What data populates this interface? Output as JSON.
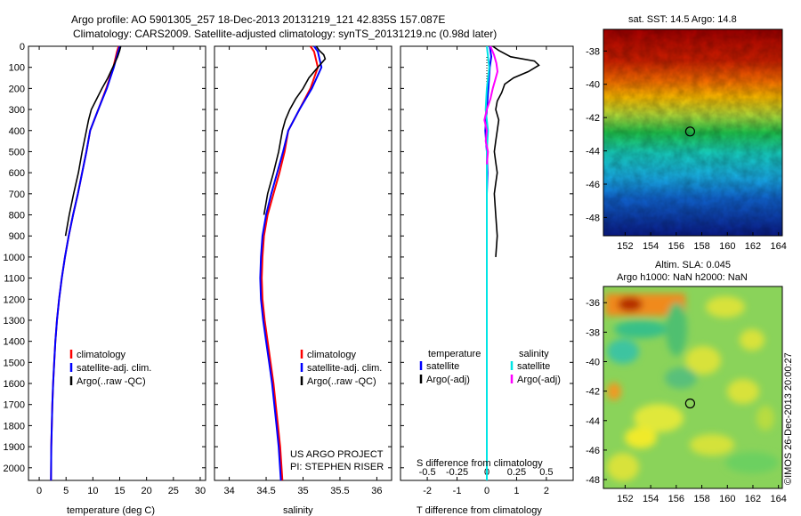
{
  "header": {
    "line1": "Argo profile: AO 5901305_257 18-Dec-2013 20131219_121 42.835S 157.087E",
    "line2": "Climatology: CARS2009. Satellite-adjusted climatology: synTS_20131219.nc (0.98d later)"
  },
  "credit": {
    "project": "US ARGO PROJECT",
    "pi": "PI: STEPHEN RISER",
    "watermark": "©IMOS 26-Dec-2013 20:00:27"
  },
  "colors": {
    "climatology": "#ff0000",
    "satellite": "#0000ff",
    "argo": "#000000",
    "salinity_satellite": "#00e5e5",
    "salinity_argo": "#ff00ff"
  },
  "chart_data": [
    {
      "type": "line",
      "xlabel": "temperature (deg C)",
      "ylabel": "",
      "xlim": [
        -2,
        31
      ],
      "ylim": [
        0,
        2060
      ],
      "y_reversed": true,
      "xticks": [
        0,
        5,
        10,
        15,
        20,
        25,
        30
      ],
      "yticks": [
        0,
        100,
        200,
        300,
        400,
        500,
        600,
        700,
        800,
        900,
        1000,
        1100,
        1200,
        1300,
        1400,
        1500,
        1600,
        1700,
        1800,
        1900,
        2000
      ],
      "legend": [
        "climatology",
        "satellite-adj. clim.",
        "Argo(..raw -QC)"
      ],
      "series": [
        {
          "name": "climatology",
          "color": "#ff0000",
          "x": [
            14.8,
            14.5,
            13.8,
            12.5,
            11.0,
            9.5,
            8.8,
            8.0,
            7.2,
            6.3,
            5.5,
            4.8,
            4.2,
            3.7,
            3.3,
            3.0,
            2.8,
            2.6,
            2.45,
            2.35,
            2.25,
            2.2
          ],
          "y": [
            0,
            25,
            100,
            200,
            300,
            400,
            500,
            600,
            700,
            800,
            900,
            1000,
            1100,
            1200,
            1300,
            1400,
            1500,
            1600,
            1700,
            1800,
            1900,
            2060
          ]
        },
        {
          "name": "satellite-adj. clim.",
          "color": "#0000ff",
          "x": [
            15.0,
            14.7,
            13.9,
            12.6,
            11.0,
            9.5,
            8.8,
            8.0,
            7.2,
            6.3,
            5.5,
            4.8,
            4.2,
            3.7,
            3.3,
            3.0,
            2.8,
            2.6,
            2.45,
            2.35,
            2.25,
            2.2
          ],
          "y": [
            0,
            25,
            100,
            200,
            300,
            400,
            500,
            600,
            700,
            800,
            900,
            1000,
            1100,
            1200,
            1300,
            1400,
            1500,
            1600,
            1700,
            1800,
            1900,
            2060
          ]
        },
        {
          "name": "Argo(..raw -QC)",
          "color": "#000000",
          "x": [
            15.2,
            15.0,
            14.6,
            13.7,
            12.8,
            11.7,
            10.7,
            9.7,
            9.2,
            8.8,
            8.4,
            8.0,
            7.3,
            6.4,
            5.6,
            4.9
          ],
          "y": [
            0,
            20,
            50,
            100,
            150,
            200,
            250,
            300,
            350,
            400,
            450,
            500,
            600,
            700,
            800,
            900
          ]
        }
      ]
    },
    {
      "type": "line",
      "xlabel": "salinity",
      "xlim": [
        33.8,
        36.2
      ],
      "ylim": [
        0,
        2060
      ],
      "y_reversed": true,
      "xticks": [
        34,
        34.5,
        35,
        35.5,
        36
      ],
      "legend": [
        "climatology",
        "satellite-adj. clim.",
        "Argo(..raw -QC)"
      ],
      "series": [
        {
          "name": "climatology",
          "color": "#ff0000",
          "x": [
            35.1,
            35.15,
            35.2,
            35.1,
            34.95,
            34.8,
            34.75,
            34.68,
            34.6,
            34.52,
            34.47,
            34.45,
            34.44,
            34.45,
            34.48,
            34.52,
            34.56,
            34.6,
            34.63,
            34.66,
            34.69,
            34.72
          ],
          "y": [
            0,
            25,
            100,
            200,
            300,
            400,
            500,
            600,
            700,
            800,
            900,
            1000,
            1100,
            1200,
            1300,
            1400,
            1500,
            1600,
            1700,
            1800,
            1900,
            2060
          ]
        },
        {
          "name": "satellite-adj. clim.",
          "color": "#0000ff",
          "x": [
            35.15,
            35.2,
            35.25,
            35.12,
            34.95,
            34.8,
            34.73,
            34.65,
            34.57,
            34.5,
            34.45,
            34.43,
            34.42,
            34.43,
            34.46,
            34.5,
            34.54,
            34.58,
            34.61,
            34.64,
            34.67,
            34.7
          ],
          "y": [
            0,
            25,
            100,
            200,
            300,
            400,
            500,
            600,
            700,
            800,
            900,
            1000,
            1100,
            1200,
            1300,
            1400,
            1500,
            1600,
            1700,
            1800,
            1900,
            2060
          ]
        },
        {
          "name": "Argo(..raw -QC)",
          "color": "#000000",
          "x": [
            35.18,
            35.22,
            35.28,
            35.3,
            35.2,
            35.08,
            35.0,
            34.9,
            34.82,
            34.76,
            34.72,
            34.67,
            34.6,
            34.52,
            34.47
          ],
          "y": [
            0,
            20,
            40,
            60,
            100,
            150,
            200,
            250,
            300,
            350,
            400,
            500,
            600,
            700,
            800
          ]
        }
      ]
    },
    {
      "type": "line",
      "xlabel": "T difference from climatology",
      "top_axis_label": "S difference from climatology",
      "xlim": [
        -2.9,
        2.9
      ],
      "top_xlim": [
        -0.725,
        0.725
      ],
      "ylim": [
        0,
        2060
      ],
      "y_reversed": true,
      "xticks": [
        -2,
        -1,
        0,
        1,
        2
      ],
      "top_xtick_labels": [
        "-0.5",
        "-0.25",
        "0",
        "0.25",
        "0.5"
      ],
      "top_xticks": [
        -0.5,
        -0.25,
        0,
        0.25,
        0.5
      ],
      "legend_titles": [
        "temperature",
        "salinity"
      ],
      "legend": [
        "satellite",
        "Argo(-adj)",
        "satellite",
        "Argo(-adj)"
      ],
      "series": [
        {
          "name": "temperature satellite",
          "color": "#0000ff",
          "x": [
            0.1,
            0.15,
            0.1,
            0.05,
            0.0,
            -0.05,
            0.0,
            0.02,
            0.0,
            0.0,
            0.0,
            0.0,
            0.0,
            0.0,
            0.0,
            0.0
          ],
          "y": [
            0,
            50,
            100,
            200,
            300,
            400,
            500,
            600,
            700,
            800,
            900,
            1000,
            1200,
            1400,
            1600,
            2060
          ]
        },
        {
          "name": "temperature Argo(-adj)",
          "color": "#000000",
          "x": [
            0.2,
            0.4,
            0.8,
            1.6,
            1.75,
            1.4,
            0.9,
            0.6,
            0.5,
            0.35,
            0.3,
            0.4,
            0.35,
            0.3,
            0.25,
            0.3,
            0.35,
            0.3,
            0.25,
            0.3,
            0.35,
            0.3
          ],
          "y": [
            0,
            20,
            50,
            70,
            90,
            120,
            150,
            180,
            220,
            260,
            300,
            350,
            400,
            450,
            500,
            550,
            600,
            650,
            700,
            800,
            900,
            1000
          ]
        },
        {
          "name": "salinity satellite",
          "color": "#00e5e5",
          "x": [
            0.0,
            0.02,
            0.0,
            -0.01,
            0.01,
            0.0,
            0.0,
            0.0,
            0.0,
            0.0,
            0.0,
            0.0,
            0.0,
            0.0,
            0.0,
            0.0
          ],
          "y": [
            0,
            100,
            200,
            300,
            400,
            500,
            600,
            700,
            800,
            900,
            1000,
            1200,
            1400,
            1600,
            1800,
            2060
          ]
        },
        {
          "name": "salinity Argo(-adj)",
          "color": "#ff00ff",
          "x": [
            0.03,
            0.06,
            0.08,
            0.09,
            0.07,
            0.05,
            0.03,
            0.0,
            -0.02,
            0.0,
            -0.01,
            0.01,
            0.0
          ],
          "y": [
            0,
            40,
            80,
            120,
            160,
            200,
            250,
            300,
            350,
            400,
            450,
            500,
            560
          ]
        }
      ]
    },
    {
      "type": "heatmap",
      "title": "sat. SST: 14.5 Argo: 14.8",
      "xticks": [
        152,
        154,
        156,
        158,
        160,
        162,
        164
      ],
      "yticks": [
        -38,
        -40,
        -42,
        -44,
        -46,
        -48
      ],
      "xlim": [
        150.3,
        164.3
      ],
      "ylim": [
        -49.1,
        -36.7
      ],
      "marker": {
        "lon": 157.087,
        "lat": -42.835
      }
    },
    {
      "type": "heatmap",
      "title": "Altim. SLA: 0.045",
      "subtitle": "Argo h1000: NaN h2000: NaN",
      "xticks": [
        152,
        154,
        156,
        158,
        160,
        162,
        164
      ],
      "yticks": [
        -36,
        -38,
        -40,
        -42,
        -44,
        -46,
        -48
      ],
      "xlim": [
        150.3,
        164.3
      ],
      "ylim": [
        -48.6,
        -34.9
      ],
      "marker": {
        "lon": 157.087,
        "lat": -42.835
      }
    }
  ]
}
